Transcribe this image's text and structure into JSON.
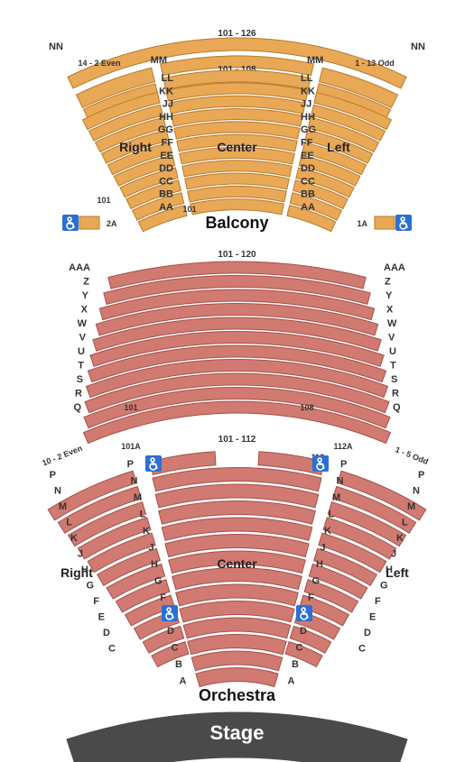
{
  "colors": {
    "balcony_fill": "#e8a856",
    "balcony_stroke": "#b87a2a",
    "orchestra_fill": "#d07a72",
    "orchestra_stroke": "#a84f47",
    "stage_fill": "#4a4a4a",
    "wheelchair_bg": "#2a6fd6",
    "wheelchair_fg": "#ffffff",
    "bg": "#ffffff"
  },
  "balcony": {
    "title": "Balcony",
    "top_range": "101 - 126",
    "center_top_range": "101 - 108",
    "nn_label": "NN",
    "mm_label": "MM",
    "ll_label": "LL",
    "side_left_label": "14 - 2 Even",
    "side_right_label": "1 - 13 Odd",
    "center_label": "Center",
    "right_label": "Right",
    "left_label": "Left",
    "row_letters": [
      "LL",
      "KK",
      "JJ",
      "HH",
      "GG",
      "FF",
      "EE",
      "DD",
      "CC",
      "BB",
      "AA"
    ],
    "mm_row": "MM",
    "nn_row": "NN",
    "bottom_left_num": "101",
    "bottom_center_num": "101",
    "wc_left": "2A",
    "wc_right": "1A"
  },
  "mezzanine": {
    "top_range": "101 - 120",
    "row_letters": [
      "AAA",
      "Z",
      "Y",
      "X",
      "W",
      "V",
      "U",
      "T",
      "S",
      "R",
      "Q"
    ],
    "bottom_left_num": "101",
    "bottom_right_num": "108"
  },
  "orchestra": {
    "title": "Orchestra",
    "top_range": "101 - 112",
    "center_label": "Center",
    "right_label": "Right",
    "left_label": "Left",
    "side_left_label": "10 - 2 Even",
    "side_right_label": "1 - 5 Odd",
    "top_left_num": "101A",
    "top_right_num": "112A",
    "top_inner_right_num": "112",
    "row_letters": [
      "P",
      "N",
      "M",
      "L",
      "K",
      "J",
      "H",
      "G",
      "F",
      "E",
      "D",
      "C",
      "B",
      "A"
    ]
  },
  "stage": {
    "label": "Stage"
  }
}
